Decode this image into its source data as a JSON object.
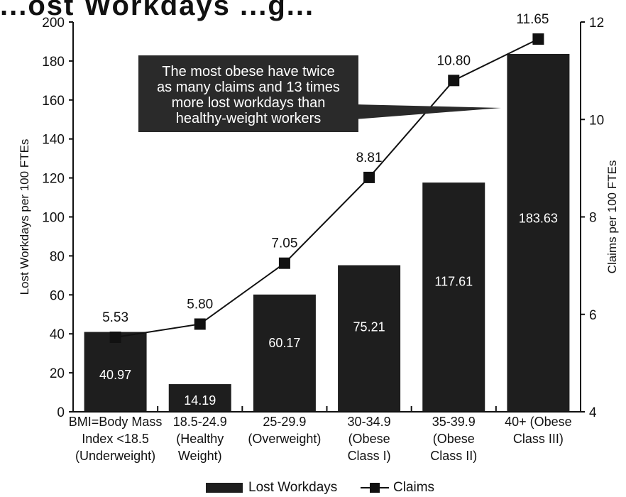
{
  "title": "...ost Workdays ...g...",
  "callout": {
    "lines": [
      "The most obese have twice",
      "as many claims and 13 times",
      "more lost workdays than",
      "healthy-weight workers"
    ]
  },
  "legend": {
    "bars_label": "Lost Workdays",
    "line_label": "Claims"
  },
  "colors": {
    "bar": "#1e1e1e",
    "line": "#111111",
    "background": "#ffffff"
  },
  "chart_data": {
    "type": "bar",
    "categories": [
      [
        "BMI=Body Mass",
        "Index <18.5",
        "(Underweight)"
      ],
      [
        "18.5-24.9",
        "(Healthy",
        "Weight)"
      ],
      [
        "25-29.9",
        "(Overweight)"
      ],
      [
        "30-34.9",
        "(Obese",
        "Class I)"
      ],
      [
        "35-39.9",
        "(Obese",
        "Class II)"
      ],
      [
        "40+ (Obese",
        "Class III)"
      ]
    ],
    "series": [
      {
        "name": "Lost Workdays",
        "type": "bar",
        "axis": "left",
        "values": [
          40.97,
          14.19,
          60.17,
          75.21,
          117.61,
          183.63
        ],
        "labels": [
          "40.97",
          "14.19",
          "60.17",
          "75.21",
          "117.61",
          "183.63"
        ]
      },
      {
        "name": "Claims",
        "type": "line",
        "axis": "right",
        "values": [
          5.53,
          5.8,
          7.05,
          8.81,
          10.8,
          11.65
        ],
        "labels": [
          "5.53",
          "5.80",
          "7.05",
          "8.81",
          "10.80",
          "11.65"
        ]
      }
    ],
    "ylabel": "Lost Workdays per 100 FTEs",
    "y2label": "Claims per 100 FTEs",
    "ylim": [
      0,
      200
    ],
    "yticks": [
      0,
      20,
      40,
      60,
      80,
      100,
      120,
      140,
      160,
      180,
      200
    ],
    "y2lim": [
      4,
      12
    ],
    "y2ticks": [
      4,
      6,
      8,
      10,
      12
    ],
    "grid": false,
    "legend_position": "bottom-center"
  }
}
